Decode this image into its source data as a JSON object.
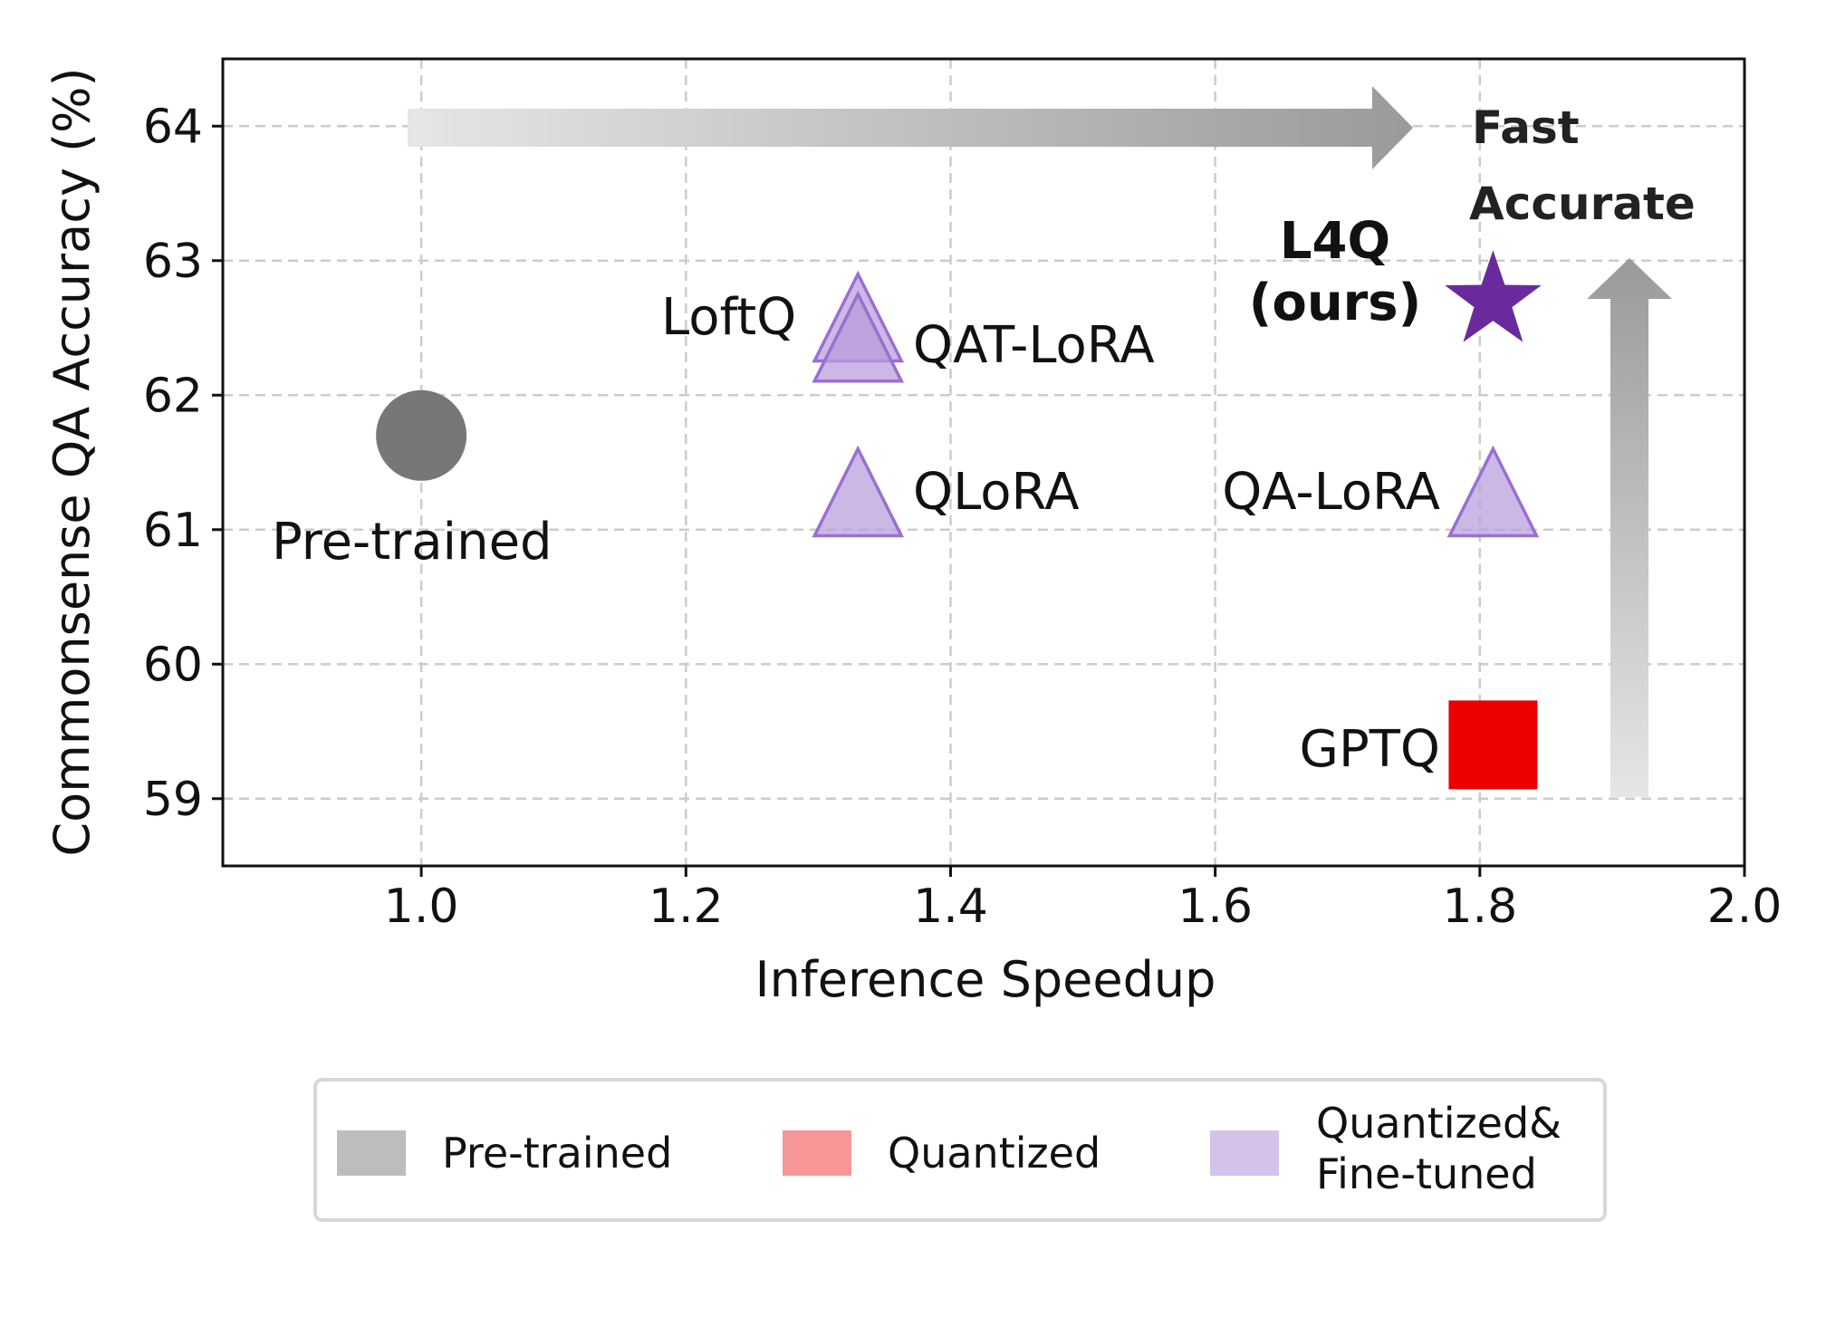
{
  "chart_data": {
    "type": "scatter",
    "xlabel": "Inference Speedup",
    "ylabel": "Commonsense QA Accuracy (%)",
    "xlim": [
      0.85,
      2.0
    ],
    "ylim": [
      58.5,
      64.5
    ],
    "xticks": [
      "1.0",
      "1.2",
      "1.4",
      "1.6",
      "1.8",
      "2.0"
    ],
    "yticks": [
      "59",
      "60",
      "61",
      "62",
      "63",
      "64"
    ],
    "grid": true,
    "points": [
      {
        "label": "Pre-trained",
        "x": 1.0,
        "y": 61.7,
        "marker": "circle",
        "category": "Pre-trained",
        "color": "#777777"
      },
      {
        "label": "LoftQ",
        "x": 1.33,
        "y": 62.5,
        "marker": "triangle",
        "category": "Quantized&Fine-tuned",
        "color": "#b79ddc"
      },
      {
        "label": "QAT-LoRA",
        "x": 1.33,
        "y": 62.35,
        "marker": "triangle",
        "category": "Quantized&Fine-tuned",
        "color": "#b79ddc"
      },
      {
        "label": "QLoRA",
        "x": 1.33,
        "y": 61.2,
        "marker": "triangle",
        "category": "Quantized&Fine-tuned",
        "color": "#b79ddc"
      },
      {
        "label": "QA-LoRA",
        "x": 1.81,
        "y": 61.2,
        "marker": "triangle",
        "category": "Quantized&Fine-tuned",
        "color": "#b79ddc"
      },
      {
        "label": "GPTQ",
        "x": 1.81,
        "y": 59.4,
        "marker": "square",
        "category": "Quantized",
        "color": "#ee0000"
      },
      {
        "label_line1": "L4Q",
        "label_line2": "(ours)",
        "x": 1.81,
        "y": 62.7,
        "marker": "star",
        "category": "Quantized&Fine-tuned",
        "color": "#6a2a9e"
      }
    ],
    "annotations": {
      "fast": "Fast",
      "accurate": "Accurate"
    },
    "legend": {
      "placement": "bottom",
      "items": [
        {
          "label": "Pre-trained",
          "color": "#bdbdbd"
        },
        {
          "label": "Quantized",
          "color": "#f79696"
        },
        {
          "label_line1": "Quantized&",
          "label_line2": "Fine-tuned",
          "color": "#d5c2ea"
        }
      ]
    }
  }
}
